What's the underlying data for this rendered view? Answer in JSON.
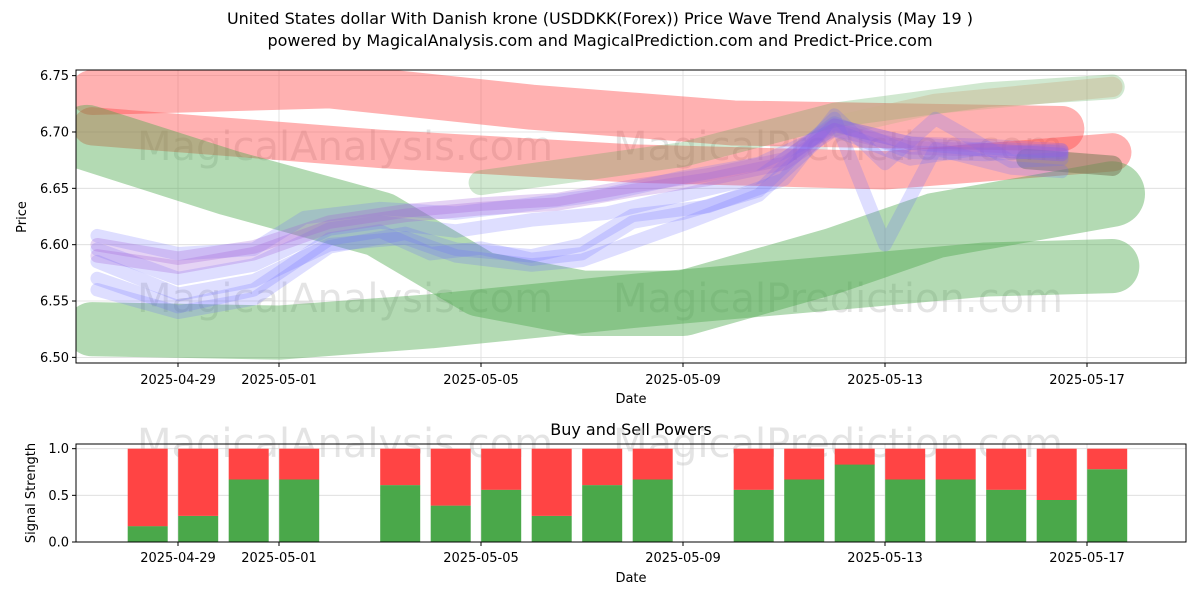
{
  "title_line1": "United States dollar With Danish krone (USDDKK(Forex)) Price Wave Trend Analysis (May 19 )",
  "title_line2": "powered by MagicalAnalysis.com and MagicalPrediction.com and Predict-Price.com",
  "watermark_left": "MagicalAnalysis.com",
  "watermark_right": "MagicalPrediction.com",
  "colors": {
    "red": "#ff4444",
    "green": "#4aa84a",
    "blue": "#6a6aff",
    "purple": "#a060d8"
  },
  "chart_data": [
    {
      "type": "line",
      "title": "",
      "xlabel": "Date",
      "ylabel": "Price",
      "ylim": [
        6.495,
        6.755
      ],
      "x_tick_labels": [
        "2025-04-29",
        "2025-05-01",
        "2025-05-05",
        "2025-05-09",
        "2025-05-13",
        "2025-05-17"
      ],
      "y_tick_labels": [
        "6.50",
        "6.55",
        "6.60",
        "6.65",
        "6.70",
        "6.75"
      ],
      "x_range_days": [
        -3.0,
        19.0
      ],
      "grid": true,
      "bands": [
        {
          "name": "red-upper-trend",
          "color": "red",
          "opacity": 0.42,
          "width_price": 0.04,
          "points": [
            [
              -1.7,
              6.735
            ],
            [
              3.0,
              6.741
            ],
            [
              7.0,
              6.722
            ],
            [
              11.0,
              6.708
            ],
            [
              17.5,
              6.703
            ]
          ]
        },
        {
          "name": "red-lower-trend",
          "color": "red",
          "opacity": 0.42,
          "width_price": 0.034,
          "points": [
            [
              -1.7,
              6.705
            ],
            [
              4.0,
              6.685
            ],
            [
              9.0,
              6.672
            ],
            [
              14.0,
              6.666
            ],
            [
              18.5,
              6.682
            ]
          ]
        },
        {
          "name": "green-descending-trend",
          "color": "green",
          "opacity": 0.42,
          "width_price": 0.058,
          "points": [
            [
              -1.8,
              6.695
            ],
            [
              1.0,
              6.655
            ],
            [
              4.0,
              6.618
            ],
            [
              6.0,
              6.565
            ],
            [
              8.0,
              6.548
            ],
            [
              10.0,
              6.548
            ],
            [
              13.0,
              6.586
            ],
            [
              15.0,
              6.617
            ],
            [
              18.5,
              6.645
            ]
          ]
        },
        {
          "name": "green-ascending-trend",
          "color": "green",
          "opacity": 0.42,
          "width_price": 0.048,
          "points": [
            [
              -1.7,
              6.525
            ],
            [
              2.0,
              6.522
            ],
            [
              5.0,
              6.532
            ],
            [
              9.0,
              6.55
            ],
            [
              13.0,
              6.566
            ],
            [
              16.0,
              6.578
            ],
            [
              18.5,
              6.581
            ]
          ]
        },
        {
          "name": "green-upper-trend",
          "color": "green",
          "opacity": 0.26,
          "width_price": 0.022,
          "points": [
            [
              6.0,
              6.655
            ],
            [
              10.0,
              6.68
            ],
            [
              13.0,
              6.715
            ],
            [
              16.0,
              6.733
            ],
            [
              18.5,
              6.74
            ]
          ]
        },
        {
          "name": "tan-upper-trend",
          "color": "#c8b08a",
          "opacity": 0.42,
          "width_price": 0.018,
          "points": [
            [
              13.0,
              6.705
            ],
            [
              15.0,
              6.725
            ],
            [
              18.5,
              6.74
            ]
          ]
        },
        {
          "name": "olive-short-trend",
          "color": "#7a7a58",
          "opacity": 0.55,
          "width_price": 0.018,
          "points": [
            [
              16.8,
              6.676
            ],
            [
              18.5,
              6.67
            ]
          ]
        }
      ],
      "series": [
        {
          "name": "blue-wave-1",
          "color": "blue",
          "opacity": 0.22,
          "width_price": 0.012,
          "values": [
            [
              -1.6,
              6.585
            ],
            [
              0.0,
              6.556
            ],
            [
              1.5,
              6.568
            ],
            [
              3.0,
              6.6
            ],
            [
              4.5,
              6.606
            ],
            [
              5.5,
              6.59
            ],
            [
              7.0,
              6.582
            ],
            [
              8.0,
              6.586
            ],
            [
              9.0,
              6.602
            ],
            [
              10.0,
              6.618
            ],
            [
              11.5,
              6.644
            ],
            [
              13.0,
              6.706
            ],
            [
              14.5,
              6.69
            ],
            [
              16.0,
              6.684
            ],
            [
              17.5,
              6.68
            ]
          ]
        },
        {
          "name": "blue-wave-2",
          "color": "blue",
          "opacity": 0.22,
          "width_price": 0.012,
          "values": [
            [
              -1.6,
              6.57
            ],
            [
              0.0,
              6.545
            ],
            [
              1.5,
              6.56
            ],
            [
              3.0,
              6.605
            ],
            [
              4.0,
              6.612
            ],
            [
              5.0,
              6.592
            ],
            [
              6.0,
              6.597
            ],
            [
              7.0,
              6.587
            ],
            [
              8.0,
              6.592
            ],
            [
              9.0,
              6.62
            ],
            [
              10.0,
              6.628
            ],
            [
              11.5,
              6.648
            ],
            [
              13.0,
              6.712
            ],
            [
              14.0,
              6.6
            ],
            [
              15.0,
              6.685
            ],
            [
              16.5,
              6.668
            ],
            [
              17.5,
              6.665
            ]
          ]
        },
        {
          "name": "blue-wave-3",
          "color": "blue",
          "opacity": 0.22,
          "width_price": 0.012,
          "values": [
            [
              -1.6,
              6.608
            ],
            [
              0.0,
              6.592
            ],
            [
              1.5,
              6.596
            ],
            [
              2.5,
              6.624
            ],
            [
              4.0,
              6.632
            ],
            [
              5.5,
              6.628
            ],
            [
              7.0,
              6.636
            ],
            [
              8.5,
              6.645
            ],
            [
              10.0,
              6.66
            ],
            [
              11.5,
              6.672
            ],
            [
              13.0,
              6.702
            ],
            [
              14.5,
              6.676
            ],
            [
              16.0,
              6.686
            ],
            [
              17.5,
              6.682
            ]
          ]
        },
        {
          "name": "blue-wave-4",
          "color": "blue",
          "opacity": 0.22,
          "width_price": 0.012,
          "values": [
            [
              -1.6,
              6.596
            ],
            [
              0.0,
              6.57
            ],
            [
              1.5,
              6.582
            ],
            [
              3.0,
              6.614
            ],
            [
              4.0,
              6.62
            ],
            [
              5.5,
              6.612
            ],
            [
              7.0,
              6.622
            ],
            [
              8.5,
              6.628
            ],
            [
              10.0,
              6.644
            ],
            [
              11.5,
              6.66
            ],
            [
              13.0,
              6.708
            ],
            [
              14.5,
              6.682
            ],
            [
              16.0,
              6.68
            ],
            [
              17.5,
              6.684
            ]
          ]
        },
        {
          "name": "blue-wave-5",
          "color": "blue",
          "opacity": 0.22,
          "width_price": 0.012,
          "values": [
            [
              -1.6,
              6.56
            ],
            [
              0.0,
              6.54
            ],
            [
              1.5,
              6.552
            ],
            [
              3.0,
              6.598
            ],
            [
              4.5,
              6.61
            ],
            [
              5.5,
              6.596
            ],
            [
              7.0,
              6.59
            ],
            [
              8.0,
              6.6
            ],
            [
              9.0,
              6.626
            ],
            [
              10.5,
              6.634
            ],
            [
              12.0,
              6.658
            ],
            [
              13.0,
              6.715
            ],
            [
              14.0,
              6.672
            ],
            [
              15.0,
              6.712
            ],
            [
              16.5,
              6.674
            ],
            [
              17.5,
              6.676
            ]
          ]
        },
        {
          "name": "purple-wave-1",
          "color": "purple",
          "opacity": 0.28,
          "width_price": 0.012,
          "values": [
            [
              -1.6,
              6.6
            ],
            [
              0.0,
              6.588
            ],
            [
              1.5,
              6.598
            ],
            [
              3.0,
              6.62
            ],
            [
              4.5,
              6.63
            ],
            [
              6.0,
              6.636
            ],
            [
              7.5,
              6.64
            ],
            [
              9.0,
              6.652
            ],
            [
              10.5,
              6.662
            ],
            [
              12.0,
              6.676
            ],
            [
              13.0,
              6.706
            ],
            [
              14.5,
              6.69
            ],
            [
              16.0,
              6.688
            ],
            [
              17.5,
              6.684
            ]
          ]
        },
        {
          "name": "purple-wave-2",
          "color": "purple",
          "opacity": 0.28,
          "width_price": 0.012,
          "values": [
            [
              -1.6,
              6.59
            ],
            [
              0.0,
              6.58
            ],
            [
              1.5,
              6.592
            ],
            [
              3.0,
              6.616
            ],
            [
              4.5,
              6.626
            ],
            [
              6.0,
              6.632
            ],
            [
              7.5,
              6.636
            ],
            [
              9.0,
              6.648
            ],
            [
              10.5,
              6.658
            ],
            [
              12.0,
              6.672
            ],
            [
              13.0,
              6.702
            ],
            [
              14.5,
              6.686
            ],
            [
              16.0,
              6.684
            ],
            [
              17.5,
              6.68
            ]
          ]
        }
      ]
    },
    {
      "type": "bar",
      "title": "Buy and Sell Powers",
      "xlabel": "Date",
      "ylabel": "Signal Strength",
      "ylim": [
        0.0,
        1.05
      ],
      "x_tick_labels": [
        "2025-04-29",
        "2025-05-01",
        "2025-05-05",
        "2025-05-09",
        "2025-05-13",
        "2025-05-17"
      ],
      "y_tick_labels": [
        "0.0",
        "0.5",
        "1.0"
      ],
      "stacked": true,
      "series": [
        {
          "name": "buy",
          "color": "#4aa84a"
        },
        {
          "name": "sell",
          "color": "#ff4444"
        }
      ],
      "categories": [
        "2025-04-28",
        "2025-04-29",
        "2025-04-30",
        "2025-05-01",
        "2025-05-03",
        "2025-05-04",
        "2025-05-05",
        "2025-05-06",
        "2025-05-07",
        "2025-05-08",
        "2025-05-10",
        "2025-05-11",
        "2025-05-12",
        "2025-05-13",
        "2025-05-14",
        "2025-05-15",
        "2025-05-16",
        "2025-05-17"
      ],
      "day_offsets": [
        -0.6,
        0.4,
        1.4,
        2.4,
        4.4,
        5.4,
        6.4,
        7.4,
        8.4,
        9.4,
        11.4,
        12.4,
        13.4,
        14.4,
        15.4,
        16.4,
        17.4,
        18.4
      ],
      "buy_values": [
        0.17,
        0.28,
        0.67,
        0.67,
        0.61,
        0.39,
        0.56,
        0.28,
        0.61,
        0.67,
        0.56,
        0.67,
        0.83,
        0.67,
        0.67,
        0.56,
        0.45,
        0.78
      ],
      "sell_values": [
        0.83,
        0.72,
        0.33,
        0.33,
        0.39,
        0.61,
        0.44,
        0.72,
        0.39,
        0.33,
        0.44,
        0.33,
        0.17,
        0.33,
        0.33,
        0.44,
        0.55,
        0.22
      ]
    }
  ]
}
